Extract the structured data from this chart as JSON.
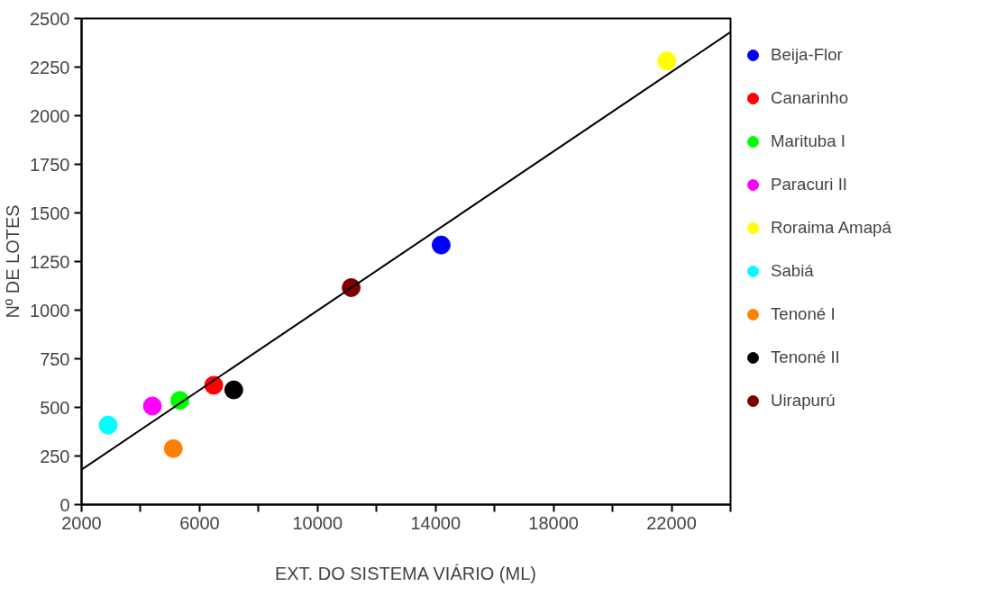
{
  "chart_data": {
    "type": "scatter",
    "xlabel": "EXT. DO SISTEMA VIÁRIO (ML)",
    "ylabel": "Nº DE LOTES",
    "xlim": [
      2000,
      24000
    ],
    "ylim": [
      0,
      2500
    ],
    "xticks": [
      2000,
      {
        "value": 4000,
        "label": null
      },
      6000,
      {
        "value": 8000,
        "label": null
      },
      10000,
      {
        "value": 12000,
        "label": null
      },
      14000,
      {
        "value": 16000,
        "label": null
      },
      18000,
      {
        "value": 20000,
        "label": null
      },
      22000,
      {
        "value": 24000,
        "label": null
      }
    ],
    "yticks": [
      0,
      250,
      500,
      750,
      1000,
      1250,
      1500,
      1750,
      2000,
      2250,
      2500
    ],
    "grid": false,
    "legend": "right",
    "marker": "circle",
    "series": [
      {
        "name": "Beija-Flor",
        "color": "#0000ff",
        "x": [
          14190
        ],
        "values": [
          1335
        ]
      },
      {
        "name": "Canarinho",
        "color": "#ff0000",
        "x": [
          6480
        ],
        "values": [
          614
        ]
      },
      {
        "name": "Marituba I",
        "color": "#00ff00",
        "x": [
          5330
        ],
        "values": [
          536
        ]
      },
      {
        "name": "Paracuri II",
        "color": "#ff00ff",
        "x": [
          4400
        ],
        "values": [
          507
        ]
      },
      {
        "name": "Roraima Amapá",
        "color": "#ffff00",
        "x": [
          21840
        ],
        "values": [
          2281
        ]
      },
      {
        "name": "Sabiá",
        "color": "#00ffff",
        "x": [
          2900
        ],
        "values": [
          409
        ]
      },
      {
        "name": "Tenoné I",
        "color": "#ff8000",
        "x": [
          5110
        ],
        "values": [
          288
        ]
      },
      {
        "name": "Tenoné II",
        "color": "#000000",
        "x": [
          7160
        ],
        "values": [
          590
        ]
      },
      {
        "name": "Uirapurú",
        "color": "#800000",
        "x": [
          11140
        ],
        "values": [
          1116
        ]
      },
      {
        "type": "line",
        "marker": "none",
        "color": "#000000",
        "x": [
          2000,
          24000
        ],
        "values": [
          180,
          2430
        ]
      }
    ]
  }
}
